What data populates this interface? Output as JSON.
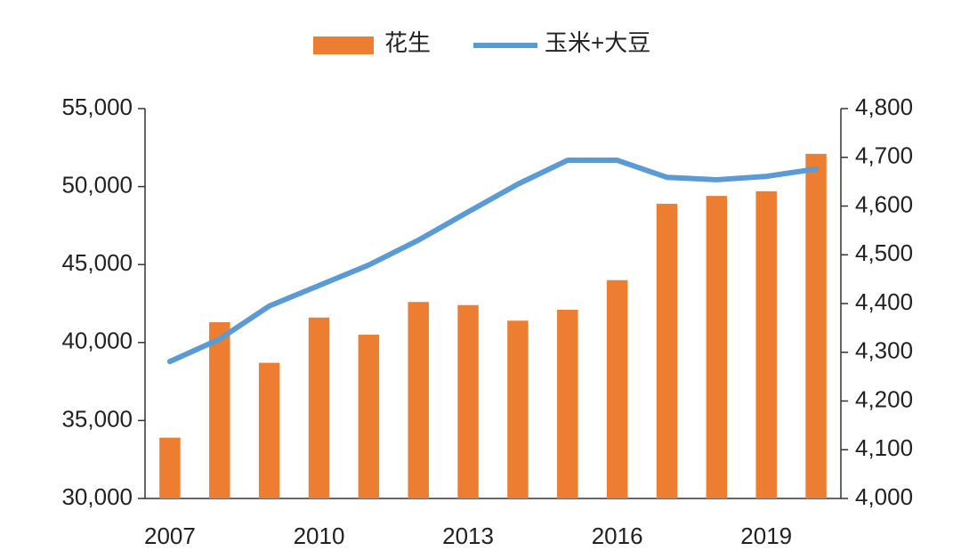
{
  "chart_data": {
    "type": "combo",
    "categories": [
      "2007",
      null,
      null,
      "2010",
      null,
      null,
      "2013",
      null,
      null,
      "2016",
      null,
      null,
      "2019",
      null
    ],
    "series": [
      {
        "name": "花生",
        "type": "bar",
        "color": "#ed7d31",
        "values": [
          33900,
          41300,
          38700,
          41600,
          40500,
          42600,
          42400,
          41400,
          42100,
          44000,
          48900,
          49400,
          49700,
          52100
        ]
      },
      {
        "name": "玉米+大豆",
        "type": "line",
        "axis": "y2",
        "color": "#5b9bd5",
        "values": [
          4281,
          4327,
          4395,
          4437,
          4479,
          4530,
          4588,
          4645,
          4694,
          4694,
          4659,
          4654,
          4661,
          4676
        ]
      }
    ],
    "ylim": [
      30000,
      55000
    ],
    "yticks": [
      {
        "value": 30000,
        "label": "30,000"
      },
      {
        "value": 35000,
        "label": "35,000"
      },
      {
        "value": 40000,
        "label": "40,000"
      },
      {
        "value": 45000,
        "label": "45,000"
      },
      {
        "value": 50000,
        "label": "50,000"
      },
      {
        "value": 55000,
        "label": "55,000"
      }
    ],
    "y2lim": [
      4000,
      4800
    ],
    "y2ticks": [
      {
        "value": 4000,
        "label": "4,000"
      },
      {
        "value": 4100,
        "label": "4,100"
      },
      {
        "value": 4200,
        "label": "4,200"
      },
      {
        "value": 4300,
        "label": "4,300"
      },
      {
        "value": 4400,
        "label": "4,400"
      },
      {
        "value": 4500,
        "label": "4,500"
      },
      {
        "value": 4600,
        "label": "4,600"
      },
      {
        "value": 4700,
        "label": "4,700"
      },
      {
        "value": 4800,
        "label": "4,800"
      }
    ],
    "grid": false,
    "legend": "top"
  }
}
